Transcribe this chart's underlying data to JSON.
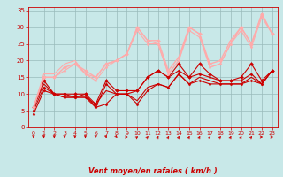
{
  "xlabel": "Vent moyen/en rafales ( km/h )",
  "xlim": [
    -0.5,
    23.5
  ],
  "ylim": [
    0,
    36
  ],
  "yticks": [
    0,
    5,
    10,
    15,
    20,
    25,
    30,
    35
  ],
  "xticks": [
    0,
    1,
    2,
    3,
    4,
    5,
    6,
    7,
    8,
    9,
    10,
    11,
    12,
    13,
    14,
    15,
    16,
    17,
    18,
    19,
    20,
    21,
    22,
    23
  ],
  "bg_color": "#c8e8e8",
  "grid_color": "#99bbbb",
  "series": [
    {
      "x": [
        0,
        1,
        2,
        3,
        4,
        5,
        6,
        7,
        8,
        9,
        10,
        11,
        12,
        13,
        14,
        15,
        16,
        17,
        18,
        19,
        20,
        21,
        22,
        23
      ],
      "y": [
        6,
        14,
        10,
        10,
        10,
        10,
        7,
        14,
        11,
        11,
        11,
        15,
        17,
        15,
        19,
        15,
        19,
        16,
        14,
        14,
        15,
        19,
        14,
        17
      ],
      "color": "#cc0000",
      "lw": 0.8,
      "marker": "D",
      "ms": 2.0
    },
    {
      "x": [
        0,
        1,
        2,
        3,
        4,
        5,
        6,
        7,
        8,
        9,
        10,
        11,
        12,
        13,
        14,
        15,
        16,
        17,
        18,
        19,
        20,
        21,
        22,
        23
      ],
      "y": [
        5,
        12,
        10,
        10,
        9,
        10,
        6,
        13,
        10,
        10,
        11,
        15,
        17,
        15,
        17,
        15,
        16,
        15,
        14,
        14,
        14,
        16,
        13,
        17
      ],
      "color": "#cc0000",
      "lw": 0.8,
      "marker": "D",
      "ms": 1.5
    },
    {
      "x": [
        0,
        1,
        2,
        3,
        4,
        5,
        6,
        7,
        8,
        9,
        10,
        11,
        12,
        13,
        14,
        15,
        16,
        17,
        18,
        19,
        20,
        21,
        22,
        23
      ],
      "y": [
        4,
        11,
        10,
        9,
        9,
        9,
        6,
        7,
        10,
        10,
        7,
        11,
        13,
        12,
        16,
        13,
        14,
        13,
        13,
        13,
        13,
        14,
        13,
        17
      ],
      "color": "#cc0000",
      "lw": 0.8,
      "marker": "D",
      "ms": 1.5
    },
    {
      "x": [
        0,
        1,
        2,
        3,
        4,
        5,
        6,
        7,
        8,
        9,
        10,
        11,
        12,
        13,
        14,
        15,
        16,
        17,
        18,
        19,
        20,
        21,
        22,
        23
      ],
      "y": [
        6,
        13,
        10,
        9,
        9,
        9,
        7,
        11,
        10,
        10,
        8,
        12,
        13,
        12,
        16,
        13,
        15,
        14,
        13,
        13,
        13,
        15,
        13,
        17
      ],
      "color": "#cc0000",
      "lw": 0.8,
      "marker": null,
      "ms": 0
    },
    {
      "x": [
        0,
        1,
        2,
        3,
        4,
        5,
        6,
        7,
        8,
        9,
        10,
        11,
        12,
        13,
        14,
        15,
        16,
        17,
        18,
        19,
        20,
        21,
        22,
        23
      ],
      "y": [
        6,
        15,
        15,
        18,
        19,
        17,
        15,
        19,
        20,
        22,
        30,
        26,
        26,
        17,
        21,
        30,
        28,
        19,
        20,
        26,
        30,
        25,
        34,
        28
      ],
      "color": "#ffaaaa",
      "lw": 1.0,
      "marker": "D",
      "ms": 2.0
    },
    {
      "x": [
        0,
        1,
        2,
        3,
        4,
        5,
        6,
        7,
        8,
        9,
        10,
        11,
        12,
        13,
        14,
        15,
        16,
        17,
        18,
        19,
        20,
        21,
        22,
        23
      ],
      "y": [
        6,
        15,
        15,
        17,
        19,
        16,
        14,
        18,
        20,
        22,
        29,
        25,
        25,
        16,
        20,
        29,
        27,
        18,
        19,
        25,
        29,
        24,
        33,
        28
      ],
      "color": "#ffaaaa",
      "lw": 0.8,
      "marker": "D",
      "ms": 1.5
    },
    {
      "x": [
        0,
        1,
        2,
        3,
        4,
        5,
        6,
        7,
        8,
        9,
        10,
        11,
        12,
        13,
        14,
        15,
        16,
        17,
        18,
        19,
        20,
        21,
        22,
        23
      ],
      "y": [
        6,
        16,
        16,
        19,
        20,
        16,
        15,
        19,
        20,
        22,
        30,
        26,
        25,
        16,
        20,
        30,
        28,
        18,
        19,
        25,
        30,
        25,
        34,
        28
      ],
      "color": "#ffaaaa",
      "lw": 0.8,
      "marker": null,
      "ms": 0
    }
  ],
  "wind_dirs": [
    180,
    180,
    180,
    180,
    180,
    180,
    180,
    160,
    135,
    90,
    60,
    45,
    30,
    30,
    30,
    30,
    30,
    30,
    45,
    30,
    30,
    45,
    90,
    90
  ]
}
